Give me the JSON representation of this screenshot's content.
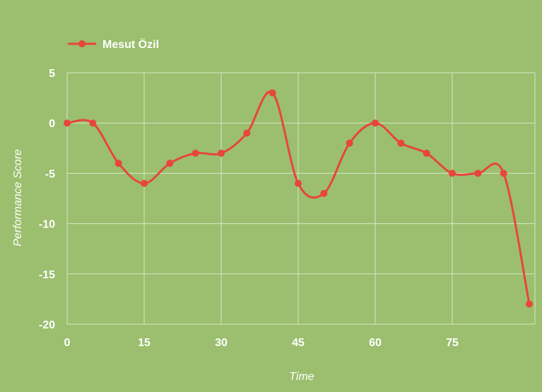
{
  "chart_data": {
    "type": "line",
    "title": "",
    "xlabel": "Time",
    "ylabel": "Performance Score",
    "xlim": [
      0,
      88
    ],
    "ylim": [
      -20,
      5
    ],
    "x_ticks": [
      0,
      15,
      30,
      45,
      60,
      75
    ],
    "y_ticks": [
      5,
      0,
      -5,
      -10,
      -15,
      -20
    ],
    "x_tick_labels": [
      "0",
      "15",
      "30",
      "45",
      "60",
      "75"
    ],
    "y_tick_labels": [
      "5",
      "0",
      "-5",
      "-10",
      "-15",
      "-20"
    ],
    "grid": true,
    "legend_position": "top-left",
    "smooth": true,
    "series": [
      {
        "name": "Mesut Özil",
        "color": "#E8453C",
        "x": [
          0,
          5,
          10,
          15,
          20,
          25,
          30,
          35,
          40,
          45,
          50,
          55,
          60,
          65,
          70,
          75,
          80,
          85,
          90
        ],
        "y": [
          0,
          0,
          -4,
          -6,
          -4,
          -3,
          -3,
          -1,
          3,
          -6,
          -7,
          -2,
          0,
          -2,
          -3,
          -5,
          -5,
          -5,
          -18
        ]
      }
    ]
  },
  "colors": {
    "background": "#9BBF6E",
    "grid": "#D9E6C8",
    "text": "#FFFFFF"
  }
}
